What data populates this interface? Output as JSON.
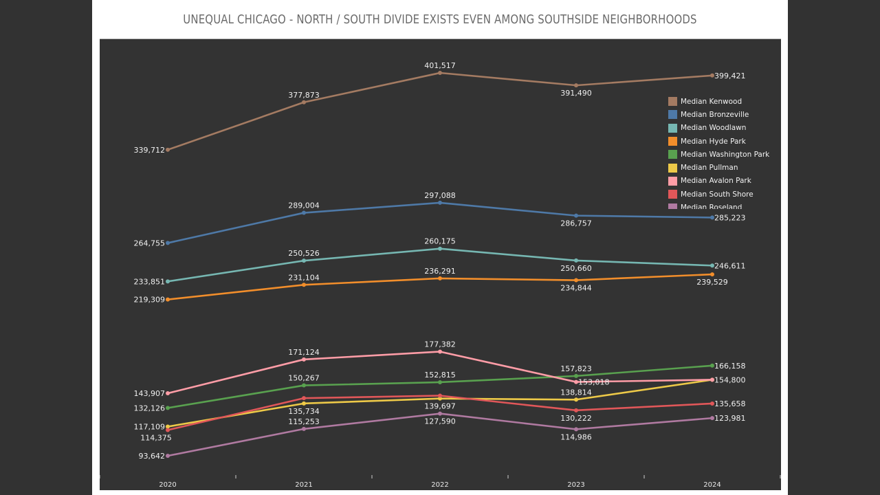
{
  "page": {
    "title": "UNEQUAL CHICAGO - NORTH / SOUTH DIVIDE EXISTS EVEN AMONG SOUTHSIDE NEIGHBORHOODS"
  },
  "chart_data": {
    "type": "line",
    "title": "UNEQUAL CHICAGO - NORTH / SOUTH DIVIDE EXISTS EVEN AMONG SOUTHSIDE NEIGHBORHOODS",
    "xlabel": "",
    "ylabel": "",
    "x": [
      "2020",
      "2021",
      "2022",
      "2023",
      "2024"
    ],
    "ylim": [
      93642,
      401517
    ],
    "grid": false,
    "legend_position": "top-right",
    "background": "#333333",
    "series": [
      {
        "name": "Median Kenwood",
        "color": "#a47b62",
        "values": [
          339712,
          377873,
          401517,
          391490,
          399421
        ],
        "label_pos": [
          "left",
          "above",
          "above",
          "below",
          "right"
        ]
      },
      {
        "name": "Median Bronzeville",
        "color": "#4e79a7",
        "values": [
          264755,
          289004,
          297088,
          286757,
          285223
        ],
        "label_pos": [
          "left",
          "above",
          "above",
          "below",
          "right"
        ]
      },
      {
        "name": "Median Woodlawn",
        "color": "#76b7b2",
        "values": [
          233851,
          250526,
          260175,
          250660,
          246611
        ],
        "label_pos": [
          "left",
          "above",
          "above",
          "below",
          "right"
        ]
      },
      {
        "name": "Median Hyde Park",
        "color": "#f28e2b",
        "values": [
          219309,
          231104,
          236291,
          234844,
          239529
        ],
        "label_pos": [
          "left",
          "above",
          "above",
          "below",
          "below"
        ]
      },
      {
        "name": "Median Washington Park",
        "color": "#59a14f",
        "values": [
          132126,
          150267,
          152815,
          157823,
          166158
        ],
        "label_pos": [
          "left",
          "above",
          "above",
          "above",
          "right"
        ]
      },
      {
        "name": "Median Pullman",
        "color": "#edc948",
        "values": [
          117109,
          135734,
          139697,
          138814,
          154800
        ],
        "label_pos": [
          "left",
          "below",
          "below",
          "above",
          "right"
        ]
      },
      {
        "name": "Median Avalon Park",
        "color": "#ff9da7",
        "values": [
          143907,
          171124,
          177382,
          153018,
          154800
        ],
        "label_pos": [
          "left",
          "above",
          "above",
          "right",
          "none"
        ]
      },
      {
        "name": "Median South Shore",
        "color": "#e15759",
        "values": [
          114375,
          140000,
          142000,
          130222,
          135658
        ],
        "label_pos": [
          "below-left",
          "none",
          "none",
          "below",
          "right"
        ]
      },
      {
        "name": "Median Roseland",
        "color": "#b07aa1",
        "values": [
          93642,
          115253,
          127590,
          114986,
          123981
        ],
        "label_pos": [
          "left",
          "above",
          "below",
          "below",
          "right"
        ]
      }
    ]
  }
}
